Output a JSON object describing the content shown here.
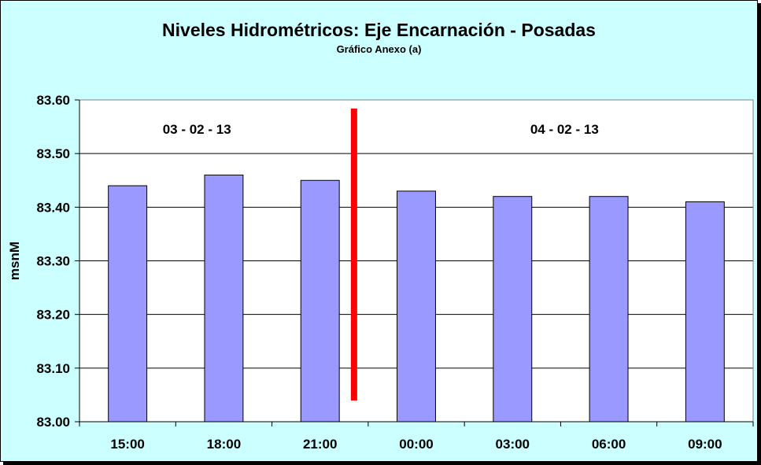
{
  "chart_data": {
    "type": "bar",
    "title": "Niveles Hidrométricos: Eje Encarnación - Posadas",
    "subtitle": "Gráfico Anexo (a)",
    "xlabel": "",
    "ylabel": "msnM",
    "ylim": [
      83.0,
      83.6
    ],
    "yticks": [
      "83.00",
      "83.10",
      "83.20",
      "83.30",
      "83.40",
      "83.50",
      "83.60"
    ],
    "categories": [
      "15:00",
      "18:00",
      "21:00",
      "00:00",
      "03:00",
      "06:00",
      "09:00"
    ],
    "values": [
      83.44,
      83.46,
      83.45,
      83.43,
      83.42,
      83.42,
      83.41
    ],
    "grid": true,
    "annotations": [
      "03 - 02 - 13",
      "04 - 02 - 13"
    ],
    "bar_color": "#9999ff",
    "separator_color": "#ff0000",
    "background_color": "#ccffff"
  }
}
